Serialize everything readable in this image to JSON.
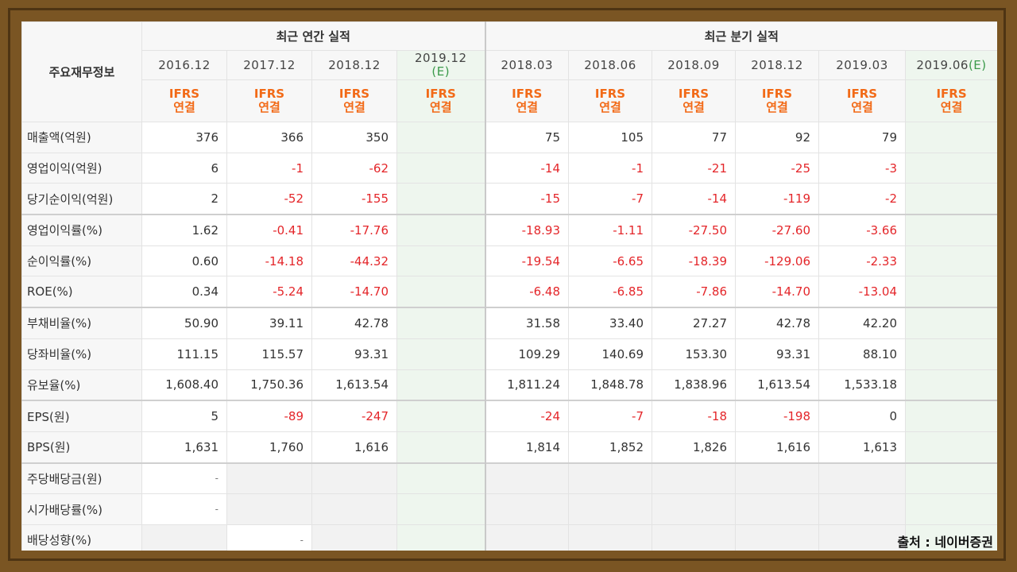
{
  "header": {
    "corner_label": "주요재무정보",
    "annual_group": "최근 연간 실적",
    "quarter_group": "최근 분기 실적",
    "annual_dates": [
      "2016.12",
      "2017.12",
      "2018.12",
      "2019.12"
    ],
    "annual_est_tag": "(E)",
    "quarter_dates": [
      "2018.03",
      "2018.06",
      "2018.09",
      "2018.12",
      "2019.03",
      "2019.06"
    ],
    "quarter_est_tag": "(E)",
    "ifrs_top": "IFRS",
    "ifrs_bottom": "연결"
  },
  "rows": [
    {
      "label": "매출액(억원)",
      "values": [
        "376",
        "366",
        "350",
        "",
        "75",
        "105",
        "77",
        "92",
        "79",
        ""
      ]
    },
    {
      "label": "영업이익(억원)",
      "values": [
        "6",
        "-1",
        "-62",
        "",
        "-14",
        "-1",
        "-21",
        "-25",
        "-3",
        ""
      ]
    },
    {
      "label": "당기순이익(억원)",
      "values": [
        "2",
        "-52",
        "-155",
        "",
        "-15",
        "-7",
        "-14",
        "-119",
        "-2",
        ""
      ]
    },
    {
      "label": "영업이익률(%)",
      "values": [
        "1.62",
        "-0.41",
        "-17.76",
        "",
        "-18.93",
        "-1.11",
        "-27.50",
        "-27.60",
        "-3.66",
        ""
      ]
    },
    {
      "label": "순이익률(%)",
      "values": [
        "0.60",
        "-14.18",
        "-44.32",
        "",
        "-19.54",
        "-6.65",
        "-18.39",
        "-129.06",
        "-2.33",
        ""
      ]
    },
    {
      "label": "ROE(%)",
      "values": [
        "0.34",
        "-5.24",
        "-14.70",
        "",
        "-6.48",
        "-6.85",
        "-7.86",
        "-14.70",
        "-13.04",
        ""
      ]
    },
    {
      "label": "부채비율(%)",
      "values": [
        "50.90",
        "39.11",
        "42.78",
        "",
        "31.58",
        "33.40",
        "27.27",
        "42.78",
        "42.20",
        ""
      ]
    },
    {
      "label": "당좌비율(%)",
      "values": [
        "111.15",
        "115.57",
        "93.31",
        "",
        "109.29",
        "140.69",
        "153.30",
        "93.31",
        "88.10",
        ""
      ]
    },
    {
      "label": "유보율(%)",
      "values": [
        "1,608.40",
        "1,750.36",
        "1,613.54",
        "",
        "1,811.24",
        "1,848.78",
        "1,838.96",
        "1,613.54",
        "1,533.18",
        ""
      ]
    },
    {
      "label": "EPS(원)",
      "values": [
        "5",
        "-89",
        "-247",
        "",
        "-24",
        "-7",
        "-18",
        "-198",
        "0",
        ""
      ]
    },
    {
      "label": "BPS(원)",
      "values": [
        "1,631",
        "1,760",
        "1,616",
        "",
        "1,814",
        "1,852",
        "1,826",
        "1,616",
        "1,613",
        ""
      ]
    },
    {
      "label": "주당배당금(원)",
      "values": [
        "-",
        "",
        "",
        "",
        "",
        "",
        "",
        "",
        "",
        ""
      ]
    },
    {
      "label": "시가배당률(%)",
      "values": [
        "-",
        "",
        "",
        "",
        "",
        "",
        "",
        "",
        "",
        ""
      ]
    },
    {
      "label": "배당성향(%)",
      "values": [
        "",
        "-",
        "",
        "",
        "",
        "",
        "",
        "",
        "",
        ""
      ]
    }
  ],
  "source_note": "출처 : 네이버증권",
  "colors": {
    "ifrs": "#f26a17",
    "negative": "#e4262a",
    "estimate": "#3a9a4a",
    "frame": "#7a5523"
  }
}
